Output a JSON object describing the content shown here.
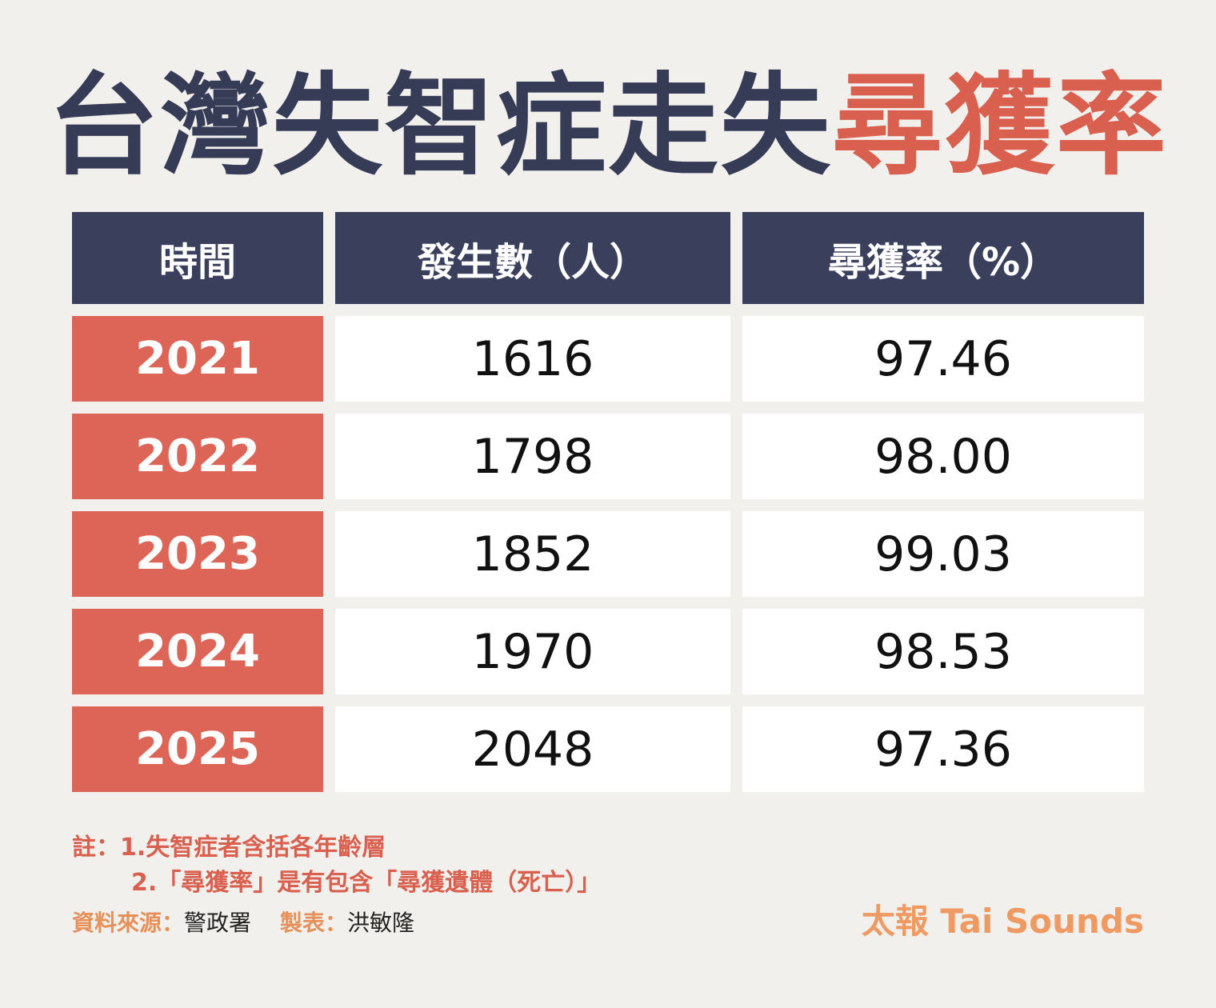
{
  "title": {
    "dark": "台灣失智症走失",
    "highlight": "尋獲率"
  },
  "colors": {
    "background": "#f2f0ed",
    "header": "#3a3f5c",
    "title_dark": "#363b56",
    "accent_red": "#dd6557",
    "brand_orange": "#ef9a62"
  },
  "chart_data": {
    "type": "table",
    "columns": [
      "時間",
      "發生數（人）",
      "尋獲率（%）"
    ],
    "rows": [
      [
        "2021",
        "1616",
        "97.46"
      ],
      [
        "2022",
        "1798",
        "98.00"
      ],
      [
        "2023",
        "1852",
        "99.03"
      ],
      [
        "2024",
        "1970",
        "98.53"
      ],
      [
        "2025",
        "2048",
        "97.36"
      ]
    ]
  },
  "notes": {
    "line1": "註：1.失智症者含括各年齡層",
    "line2": "2.「尋獲率」是有包含「尋獲遺體（死亡）」"
  },
  "source": {
    "source_label": "資料來源：",
    "source_value": "警政署",
    "maker_label": "製表：",
    "maker_value": "洪敏隆"
  },
  "brand": "太報 Tai Sounds"
}
